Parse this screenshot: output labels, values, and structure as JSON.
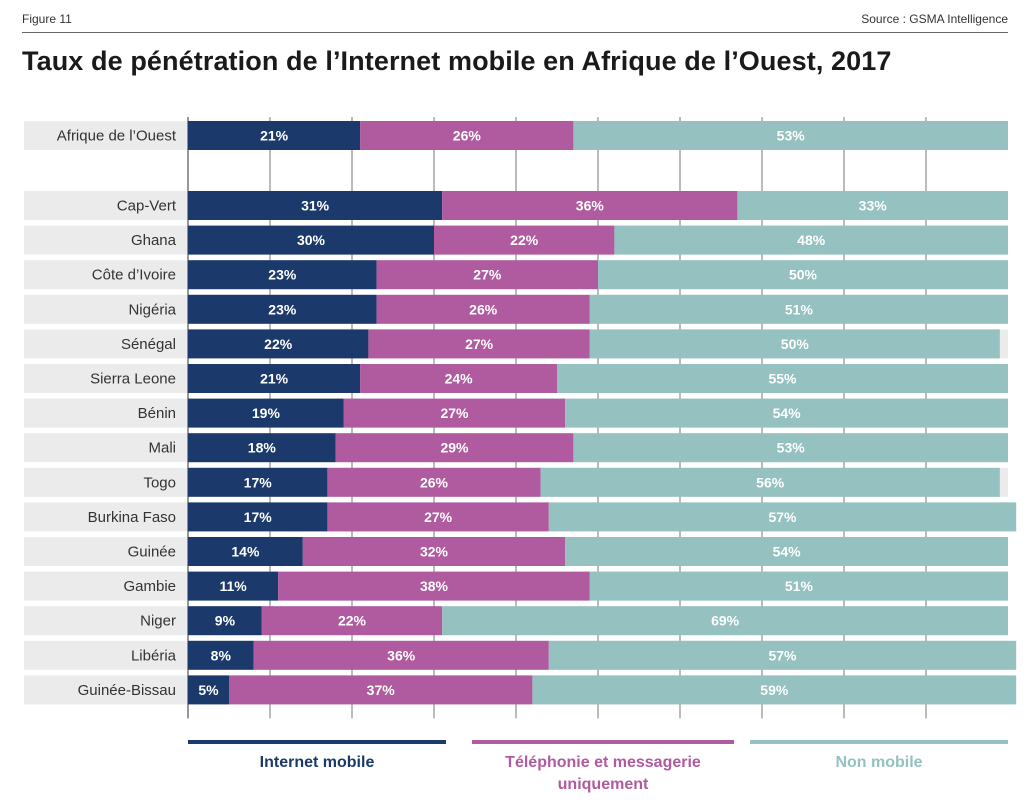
{
  "header": {
    "figure": "Figure 11",
    "source": "Source : GSMA Intelligence"
  },
  "colors": {
    "internet": "#1b3a6b",
    "telephonie": "#b05a9f",
    "non_mobile": "#95c1c0",
    "row_bg": "#ebebeb",
    "grid": "#555555"
  },
  "chart_data": {
    "type": "bar",
    "orientation": "horizontal",
    "stacked": true,
    "title": "Taux de pénétration de l’Internet mobile en Afrique de l’Ouest, 2017",
    "xlim": [
      0,
      100
    ],
    "grid": true,
    "legend_position": "bottom",
    "categories": [
      "Afrique de l’Ouest",
      "Cap-Vert",
      "Ghana",
      "Côte d’Ivoire",
      "Nigéria",
      "Sénégal",
      "Sierra Leone",
      "Bénin",
      "Mali",
      "Togo",
      "Burkina Faso",
      "Guinée",
      "Gambie",
      "Niger",
      "Libéria",
      "Guinée-Bissau"
    ],
    "series": [
      {
        "name": "Internet mobile",
        "color": "#1b3a6b",
        "values": [
          21,
          31,
          30,
          23,
          23,
          22,
          21,
          19,
          18,
          17,
          17,
          14,
          11,
          9,
          8,
          5
        ]
      },
      {
        "name": "Téléphonie et messagerie uniquement",
        "color": "#b05a9f",
        "values": [
          26,
          36,
          22,
          27,
          26,
          27,
          24,
          27,
          29,
          26,
          27,
          32,
          38,
          22,
          36,
          37
        ]
      },
      {
        "name": "Non mobile",
        "color": "#95c1c0",
        "values": [
          53,
          33,
          48,
          50,
          51,
          50,
          55,
          54,
          53,
          56,
          57,
          54,
          51,
          69,
          57,
          59
        ]
      }
    ]
  },
  "legend": {
    "internet": "Internet mobile",
    "telephonie_line1": "Téléphonie et messagerie",
    "telephonie_line2": "uniquement",
    "non_mobile": "Non mobile"
  }
}
